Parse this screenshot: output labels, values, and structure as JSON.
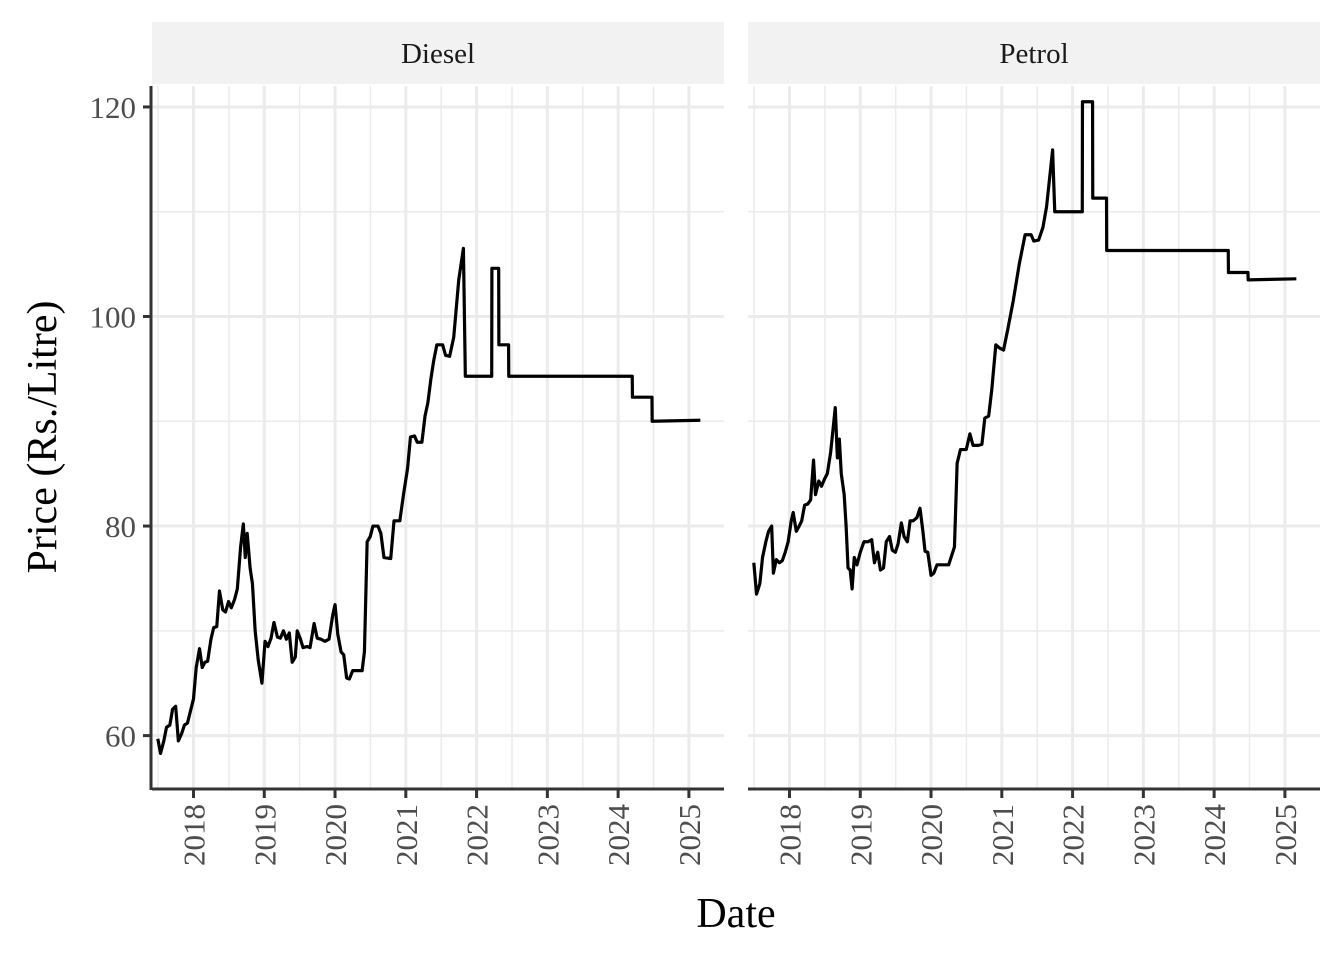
{
  "chart_data": {
    "type": "line",
    "xlabel": "Date",
    "ylabel": "Price (Rs./Litre)",
    "ylim": [
      55,
      122
    ],
    "yticks": [
      60,
      80,
      100,
      120
    ],
    "xlim": [
      "2017-06-01",
      "2025-07-01"
    ],
    "xticks": [
      "2018",
      "2019",
      "2020",
      "2021",
      "2022",
      "2023",
      "2024",
      "2025"
    ],
    "grid": true,
    "line_color": "#000000",
    "panels": [
      {
        "title": "Diesel",
        "points": [
          [
            "2017-07-01",
            59.7
          ],
          [
            "2017-07-15",
            58.3
          ],
          [
            "2017-08-01",
            59.5
          ],
          [
            "2017-08-15",
            60.8
          ],
          [
            "2017-09-01",
            61.0
          ],
          [
            "2017-09-15",
            62.5
          ],
          [
            "2017-10-01",
            62.8
          ],
          [
            "2017-10-15",
            59.5
          ],
          [
            "2017-11-01",
            60.2
          ],
          [
            "2017-11-15",
            61.0
          ],
          [
            "2017-12-01",
            61.2
          ],
          [
            "2018-01-01",
            63.5
          ],
          [
            "2018-01-15",
            66.5
          ],
          [
            "2018-02-01",
            68.3
          ],
          [
            "2018-02-15",
            66.5
          ],
          [
            "2018-03-01",
            67.0
          ],
          [
            "2018-03-15",
            67.1
          ],
          [
            "2018-04-01",
            69.2
          ],
          [
            "2018-04-15",
            70.3
          ],
          [
            "2018-05-01",
            70.4
          ],
          [
            "2018-05-15",
            73.8
          ],
          [
            "2018-06-01",
            72.0
          ],
          [
            "2018-06-15",
            71.8
          ],
          [
            "2018-07-01",
            72.8
          ],
          [
            "2018-07-15",
            72.2
          ],
          [
            "2018-08-01",
            73.0
          ],
          [
            "2018-08-15",
            74.0
          ],
          [
            "2018-09-01",
            78.0
          ],
          [
            "2018-09-15",
            80.2
          ],
          [
            "2018-09-25",
            77.0
          ],
          [
            "2018-10-05",
            79.3
          ],
          [
            "2018-10-20",
            76.0
          ],
          [
            "2018-11-01",
            74.5
          ],
          [
            "2018-11-15",
            70.0
          ],
          [
            "2018-12-01",
            67.2
          ],
          [
            "2018-12-20",
            65.0
          ],
          [
            "2019-01-05",
            69.0
          ],
          [
            "2019-01-20",
            68.5
          ],
          [
            "2019-02-05",
            69.3
          ],
          [
            "2019-02-20",
            70.8
          ],
          [
            "2019-03-10",
            69.4
          ],
          [
            "2019-03-25",
            69.3
          ],
          [
            "2019-04-10",
            70.0
          ],
          [
            "2019-04-25",
            69.2
          ],
          [
            "2019-05-10",
            69.8
          ],
          [
            "2019-05-25",
            67.0
          ],
          [
            "2019-06-10",
            67.5
          ],
          [
            "2019-06-20",
            70.0
          ],
          [
            "2019-07-05",
            69.3
          ],
          [
            "2019-07-20",
            68.4
          ],
          [
            "2019-08-10",
            68.5
          ],
          [
            "2019-08-25",
            68.4
          ],
          [
            "2019-09-15",
            70.7
          ],
          [
            "2019-10-01",
            69.3
          ],
          [
            "2019-10-20",
            69.2
          ],
          [
            "2019-11-10",
            69.0
          ],
          [
            "2019-12-01",
            69.2
          ],
          [
            "2019-12-20",
            71.5
          ],
          [
            "2020-01-01",
            72.5
          ],
          [
            "2020-01-15",
            69.7
          ],
          [
            "2020-02-01",
            68.0
          ],
          [
            "2020-02-15",
            67.7
          ],
          [
            "2020-03-01",
            65.5
          ],
          [
            "2020-03-15",
            65.4
          ],
          [
            "2020-04-01",
            66.2
          ],
          [
            "2020-05-20",
            66.2
          ],
          [
            "2020-06-01",
            68.0
          ],
          [
            "2020-06-15",
            78.5
          ],
          [
            "2020-07-01",
            79.0
          ],
          [
            "2020-07-15",
            80.0
          ],
          [
            "2020-08-10",
            80.0
          ],
          [
            "2020-08-25",
            79.3
          ],
          [
            "2020-09-10",
            77.0
          ],
          [
            "2020-10-15",
            76.9
          ],
          [
            "2020-11-01",
            80.5
          ],
          [
            "2020-12-01",
            80.5
          ],
          [
            "2020-12-20",
            83.0
          ],
          [
            "2021-01-10",
            85.5
          ],
          [
            "2021-01-25",
            88.5
          ],
          [
            "2021-02-15",
            88.6
          ],
          [
            "2021-03-01",
            88.0
          ],
          [
            "2021-03-25",
            88.0
          ],
          [
            "2021-04-10",
            90.5
          ],
          [
            "2021-04-25",
            91.8
          ],
          [
            "2021-05-10",
            94.0
          ],
          [
            "2021-05-25",
            95.8
          ],
          [
            "2021-06-10",
            97.3
          ],
          [
            "2021-07-10",
            97.3
          ],
          [
            "2021-07-25",
            96.3
          ],
          [
            "2021-08-15",
            96.2
          ],
          [
            "2021-09-05",
            98.0
          ],
          [
            "2021-10-01",
            103.5
          ],
          [
            "2021-10-25",
            106.5
          ],
          [
            "2021-11-04",
            94.3
          ],
          [
            "2022-03-20",
            94.3
          ],
          [
            "2022-03-21",
            104.6
          ],
          [
            "2022-04-25",
            104.6
          ],
          [
            "2022-04-26",
            97.3
          ],
          [
            "2022-06-15",
            97.3
          ],
          [
            "2022-06-16",
            94.3
          ],
          [
            "2024-03-14",
            94.3
          ],
          [
            "2024-03-15",
            92.3
          ],
          [
            "2024-06-24",
            92.3
          ],
          [
            "2024-06-25",
            90.0
          ],
          [
            "2025-03-01",
            90.1
          ]
        ]
      },
      {
        "title": "Petrol",
        "points": [
          [
            "2017-07-01",
            76.5
          ],
          [
            "2017-07-15",
            73.5
          ],
          [
            "2017-08-01",
            74.5
          ],
          [
            "2017-08-15",
            77.0
          ],
          [
            "2017-09-01",
            78.5
          ],
          [
            "2017-09-15",
            79.5
          ],
          [
            "2017-10-01",
            80.0
          ],
          [
            "2017-10-10",
            75.5
          ],
          [
            "2017-10-25",
            76.8
          ],
          [
            "2017-11-10",
            76.5
          ],
          [
            "2017-11-25",
            76.7
          ],
          [
            "2017-12-10",
            77.5
          ],
          [
            "2017-12-25",
            78.5
          ],
          [
            "2018-01-10",
            80.5
          ],
          [
            "2018-01-20",
            81.3
          ],
          [
            "2018-02-05",
            79.5
          ],
          [
            "2018-02-20",
            80.0
          ],
          [
            "2018-03-05",
            80.5
          ],
          [
            "2018-03-20",
            82.0
          ],
          [
            "2018-04-05",
            82.1
          ],
          [
            "2018-04-20",
            82.5
          ],
          [
            "2018-05-05",
            86.3
          ],
          [
            "2018-05-15",
            83.0
          ],
          [
            "2018-06-01",
            84.3
          ],
          [
            "2018-06-15",
            83.8
          ],
          [
            "2018-07-01",
            84.5
          ],
          [
            "2018-07-15",
            85.0
          ],
          [
            "2018-08-01",
            87.0
          ],
          [
            "2018-08-15",
            89.5
          ],
          [
            "2018-08-25",
            91.3
          ],
          [
            "2018-09-05",
            86.5
          ],
          [
            "2018-09-15",
            88.3
          ],
          [
            "2018-09-25",
            85.0
          ],
          [
            "2018-10-10",
            83.0
          ],
          [
            "2018-10-20",
            80.0
          ],
          [
            "2018-10-30",
            76.0
          ],
          [
            "2018-11-10",
            75.8
          ],
          [
            "2018-11-20",
            74.0
          ],
          [
            "2018-12-01",
            77.0
          ],
          [
            "2018-12-15",
            76.3
          ],
          [
            "2019-01-01",
            77.5
          ],
          [
            "2019-01-20",
            78.5
          ],
          [
            "2019-02-10",
            78.5
          ],
          [
            "2019-03-01",
            78.7
          ],
          [
            "2019-03-15",
            76.5
          ],
          [
            "2019-04-01",
            77.5
          ],
          [
            "2019-04-15",
            75.8
          ],
          [
            "2019-05-01",
            76.0
          ],
          [
            "2019-05-15",
            78.5
          ],
          [
            "2019-06-01",
            79.0
          ],
          [
            "2019-06-15",
            77.7
          ],
          [
            "2019-07-01",
            77.5
          ],
          [
            "2019-07-15",
            78.3
          ],
          [
            "2019-08-01",
            80.3
          ],
          [
            "2019-08-15",
            79.0
          ],
          [
            "2019-09-01",
            78.5
          ],
          [
            "2019-09-15",
            80.5
          ],
          [
            "2019-10-01",
            80.5
          ],
          [
            "2019-10-20",
            80.8
          ],
          [
            "2019-11-05",
            81.7
          ],
          [
            "2019-11-20",
            79.5
          ],
          [
            "2019-12-01",
            77.6
          ],
          [
            "2019-12-15",
            77.5
          ],
          [
            "2020-01-01",
            75.3
          ],
          [
            "2020-01-15",
            75.5
          ],
          [
            "2020-02-01",
            76.3
          ],
          [
            "2020-04-01",
            76.3
          ],
          [
            "2020-05-01",
            78.0
          ],
          [
            "2020-05-15",
            86.0
          ],
          [
            "2020-06-01",
            87.3
          ],
          [
            "2020-07-01",
            87.3
          ],
          [
            "2020-07-20",
            88.8
          ],
          [
            "2020-08-05",
            87.7
          ],
          [
            "2020-09-01",
            87.7
          ],
          [
            "2020-09-20",
            87.8
          ],
          [
            "2020-10-05",
            90.3
          ],
          [
            "2020-10-25",
            90.5
          ],
          [
            "2020-11-10",
            93.0
          ],
          [
            "2020-12-01",
            97.3
          ],
          [
            "2020-12-20",
            97.0
          ],
          [
            "2021-01-10",
            96.8
          ],
          [
            "2021-02-01",
            98.8
          ],
          [
            "2021-03-01",
            101.5
          ],
          [
            "2021-04-01",
            105.0
          ],
          [
            "2021-05-01",
            107.8
          ],
          [
            "2021-06-01",
            107.8
          ],
          [
            "2021-06-15",
            107.2
          ],
          [
            "2021-07-10",
            107.3
          ],
          [
            "2021-08-01",
            108.5
          ],
          [
            "2021-08-20",
            110.5
          ],
          [
            "2021-09-20",
            115.9
          ],
          [
            "2021-10-01",
            110.0
          ],
          [
            "2022-02-20",
            110.0
          ],
          [
            "2022-02-21",
            120.5
          ],
          [
            "2022-04-14",
            120.5
          ],
          [
            "2022-04-15",
            111.3
          ],
          [
            "2022-06-25",
            111.3
          ],
          [
            "2022-06-26",
            106.3
          ],
          [
            "2024-03-14",
            106.3
          ],
          [
            "2024-03-15",
            104.2
          ],
          [
            "2024-06-24",
            104.2
          ],
          [
            "2024-06-25",
            103.5
          ],
          [
            "2025-03-01",
            103.6
          ]
        ]
      }
    ]
  }
}
